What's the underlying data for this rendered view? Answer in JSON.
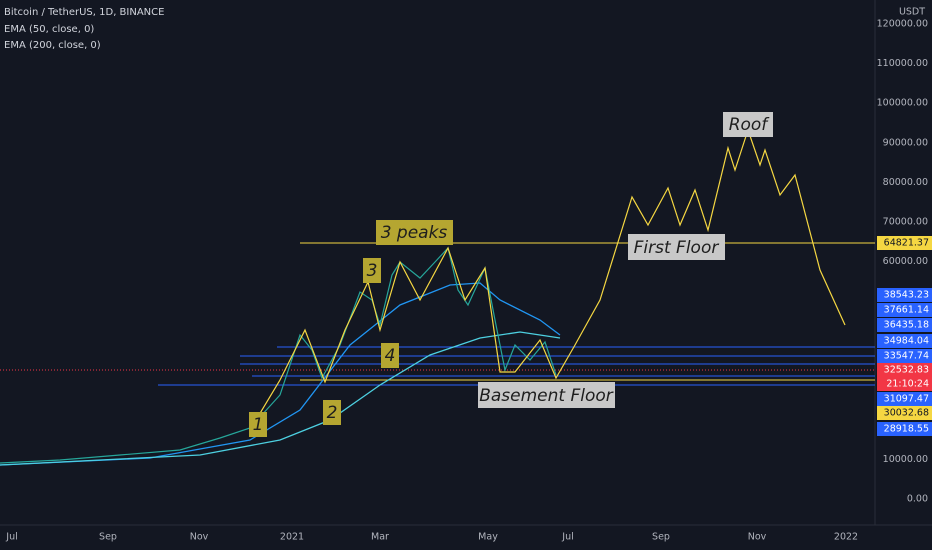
{
  "header": {
    "symbol": "Bitcoin / TetherUS, 1D, BINANCE",
    "indicators": [
      "EMA (50, close, 0)",
      "EMA (200, close, 0)"
    ]
  },
  "price_axis": {
    "currency": "USDT",
    "labels": [
      {
        "value": 0,
        "label": "0.00"
      },
      {
        "value": 10000,
        "label": "10000.00"
      },
      {
        "value": 60000,
        "label": "60000.00"
      },
      {
        "value": 70000,
        "label": "70000.00"
      },
      {
        "value": 80000,
        "label": "80000.00"
      },
      {
        "value": 90000,
        "label": "90000.00"
      },
      {
        "value": 100000,
        "label": "100000.00"
      },
      {
        "value": 110000,
        "label": "110000.00"
      },
      {
        "value": 120000,
        "label": "120000.00"
      }
    ]
  },
  "price_tags": [
    {
      "label": "64821.37",
      "kind": "yellow"
    },
    {
      "label": "38543.23",
      "kind": "blue"
    },
    {
      "label": "37661.14",
      "kind": "blue"
    },
    {
      "label": "36435.18",
      "kind": "blue"
    },
    {
      "label": "34984.04",
      "kind": "blue"
    },
    {
      "label": "33547.74",
      "kind": "blue"
    },
    {
      "label": "32532.83",
      "kind": "red"
    },
    {
      "label": "21:10:24",
      "kind": "red"
    },
    {
      "label": "31097.47",
      "kind": "blue"
    },
    {
      "label": "30032.68",
      "kind": "yellow"
    },
    {
      "label": "28918.55",
      "kind": "blue"
    }
  ],
  "time_axis": [
    "Jul",
    "Sep",
    "Nov",
    "2021",
    "Mar",
    "May",
    "Jul",
    "Sep",
    "Nov",
    "2022"
  ],
  "annotations": {
    "peaks": "3 peaks",
    "first_floor": "First Floor",
    "roof": "Roof",
    "basement": "Basement Floor",
    "n1": "1",
    "n2": "2",
    "n3": "3",
    "n4": "4"
  }
}
